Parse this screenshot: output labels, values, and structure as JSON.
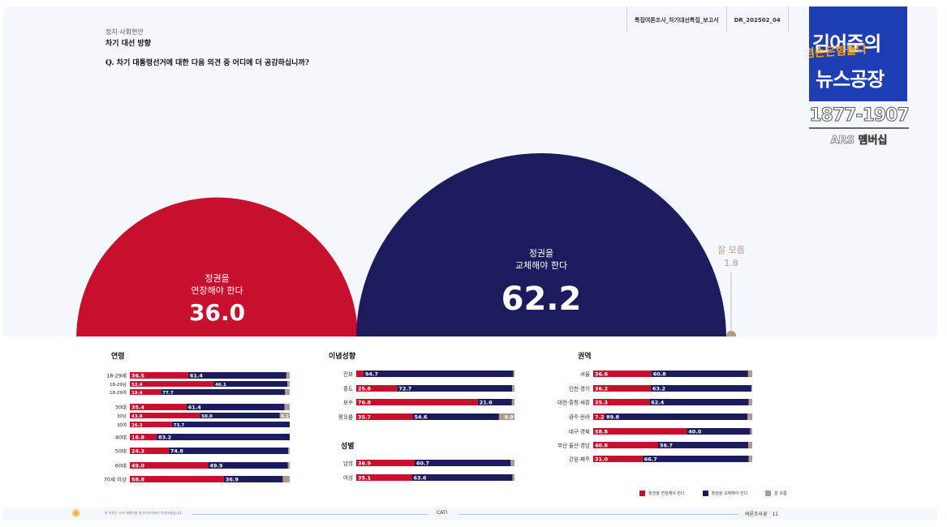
{
  "header": {
    "category": "정치·사회현안",
    "title": "차기 대선 방향",
    "question": "Q. 차기 대통령선거에 대한 다음 의견 중 어디에 더 공감하십니까?",
    "report_name": "특집여론조사_차기대선특집_보고서",
    "report_code": "DR_202502_04"
  },
  "logo": {
    "line1": "김어준의",
    "line2": "겸손은힘들다",
    "line3": "뉴스공장",
    "range": "1877-1907",
    "ars": "ARS 멤버십"
  },
  "colors": {
    "red": "#c8102e",
    "navy": "#1b1b5e",
    "gray": "#b09a8e"
  },
  "chart_data": [
    {
      "type": "bubble",
      "title": "차기 대선 방향",
      "items": [
        {
          "line1": "정권을",
          "line2": "연장해야 한다",
          "value": "36.0",
          "color": "#c8102e"
        },
        {
          "line1": "정권을",
          "line2": "교체해야 한다",
          "value": "62.2",
          "color": "#1b1b5e"
        },
        {
          "line1": "잘 모름",
          "line2": "",
          "value": "1.8",
          "color": "#b09a8e"
        }
      ]
    },
    {
      "type": "bar",
      "stacked": true,
      "title": "연령",
      "rows": [
        {
          "label": "18-29세",
          "values": [
            36.5,
            61.4,
            2.1
          ]
        },
        {
          "label": "18-29남",
          "values": [
            52.4,
            46.1,
            1.5
          ],
          "sub": true
        },
        {
          "label": "18-29여",
          "values": [
            19.4,
            77.7,
            2.9
          ],
          "sub": true
        },
        {
          "label": "30대",
          "values": [
            35.4,
            61.4,
            3.2
          ]
        },
        {
          "label": "30남",
          "values": [
            43.8,
            50.0,
            6.2
          ],
          "sub": true,
          "label3": "6.2"
        },
        {
          "label": "30여",
          "values": [
            26.3,
            73.7,
            0.0
          ],
          "sub": true
        },
        {
          "label": "40대",
          "values": [
            16.8,
            83.2,
            0.0
          ]
        },
        {
          "label": "50대",
          "values": [
            24.3,
            74.8,
            0.9
          ]
        },
        {
          "label": "60대",
          "values": [
            49.0,
            49.9,
            1.1
          ]
        },
        {
          "label": "70세 이상",
          "values": [
            58.8,
            36.9,
            4.3
          ]
        }
      ]
    },
    {
      "type": "bar",
      "stacked": true,
      "title": "이념성향",
      "rows": [
        {
          "label": "진보",
          "values": [
            4.6,
            94.7,
            0.7
          ],
          "hide1": true
        },
        {
          "label": "중도",
          "values": [
            25.8,
            72.7,
            1.5
          ]
        },
        {
          "label": "보수",
          "values": [
            76.8,
            21.6,
            1.6
          ]
        },
        {
          "label": "잘모름",
          "values": [
            35.7,
            54.6,
            9.8
          ],
          "label3": "9.8"
        }
      ]
    },
    {
      "type": "bar",
      "stacked": true,
      "title": "성별",
      "rows": [
        {
          "label": "남성",
          "values": [
            36.9,
            60.7,
            2.4
          ]
        },
        {
          "label": "여성",
          "values": [
            35.1,
            63.6,
            1.3
          ]
        }
      ]
    },
    {
      "type": "bar",
      "stacked": true,
      "title": "권역",
      "rows": [
        {
          "label": "서울",
          "values": [
            36.6,
            60.8,
            2.6
          ]
        },
        {
          "label": "인천·경기",
          "values": [
            36.2,
            63.2,
            0.6
          ]
        },
        {
          "label": "대전·충청·세종",
          "values": [
            35.3,
            62.4,
            2.3
          ]
        },
        {
          "label": "광주·전라",
          "values": [
            7.2,
            89.8,
            3.0
          ]
        },
        {
          "label": "대구·경북",
          "values": [
            58.8,
            40.0,
            1.2
          ]
        },
        {
          "label": "부산·울산·경남",
          "values": [
            40.8,
            56.7,
            2.5
          ]
        },
        {
          "label": "강원·제주",
          "values": [
            31.0,
            66.7,
            2.3
          ]
        }
      ]
    }
  ],
  "legend": {
    "extend": "정권을 연장해야 한다",
    "replace": "정권을 교체해야 한다",
    "unknown": "잘 모름"
  },
  "footer": {
    "note": "본 자료는 조사 대행기관 한국리서치에서 작성하였습니다.",
    "method": "CATI",
    "page": "여론조사꽃 · 11"
  }
}
